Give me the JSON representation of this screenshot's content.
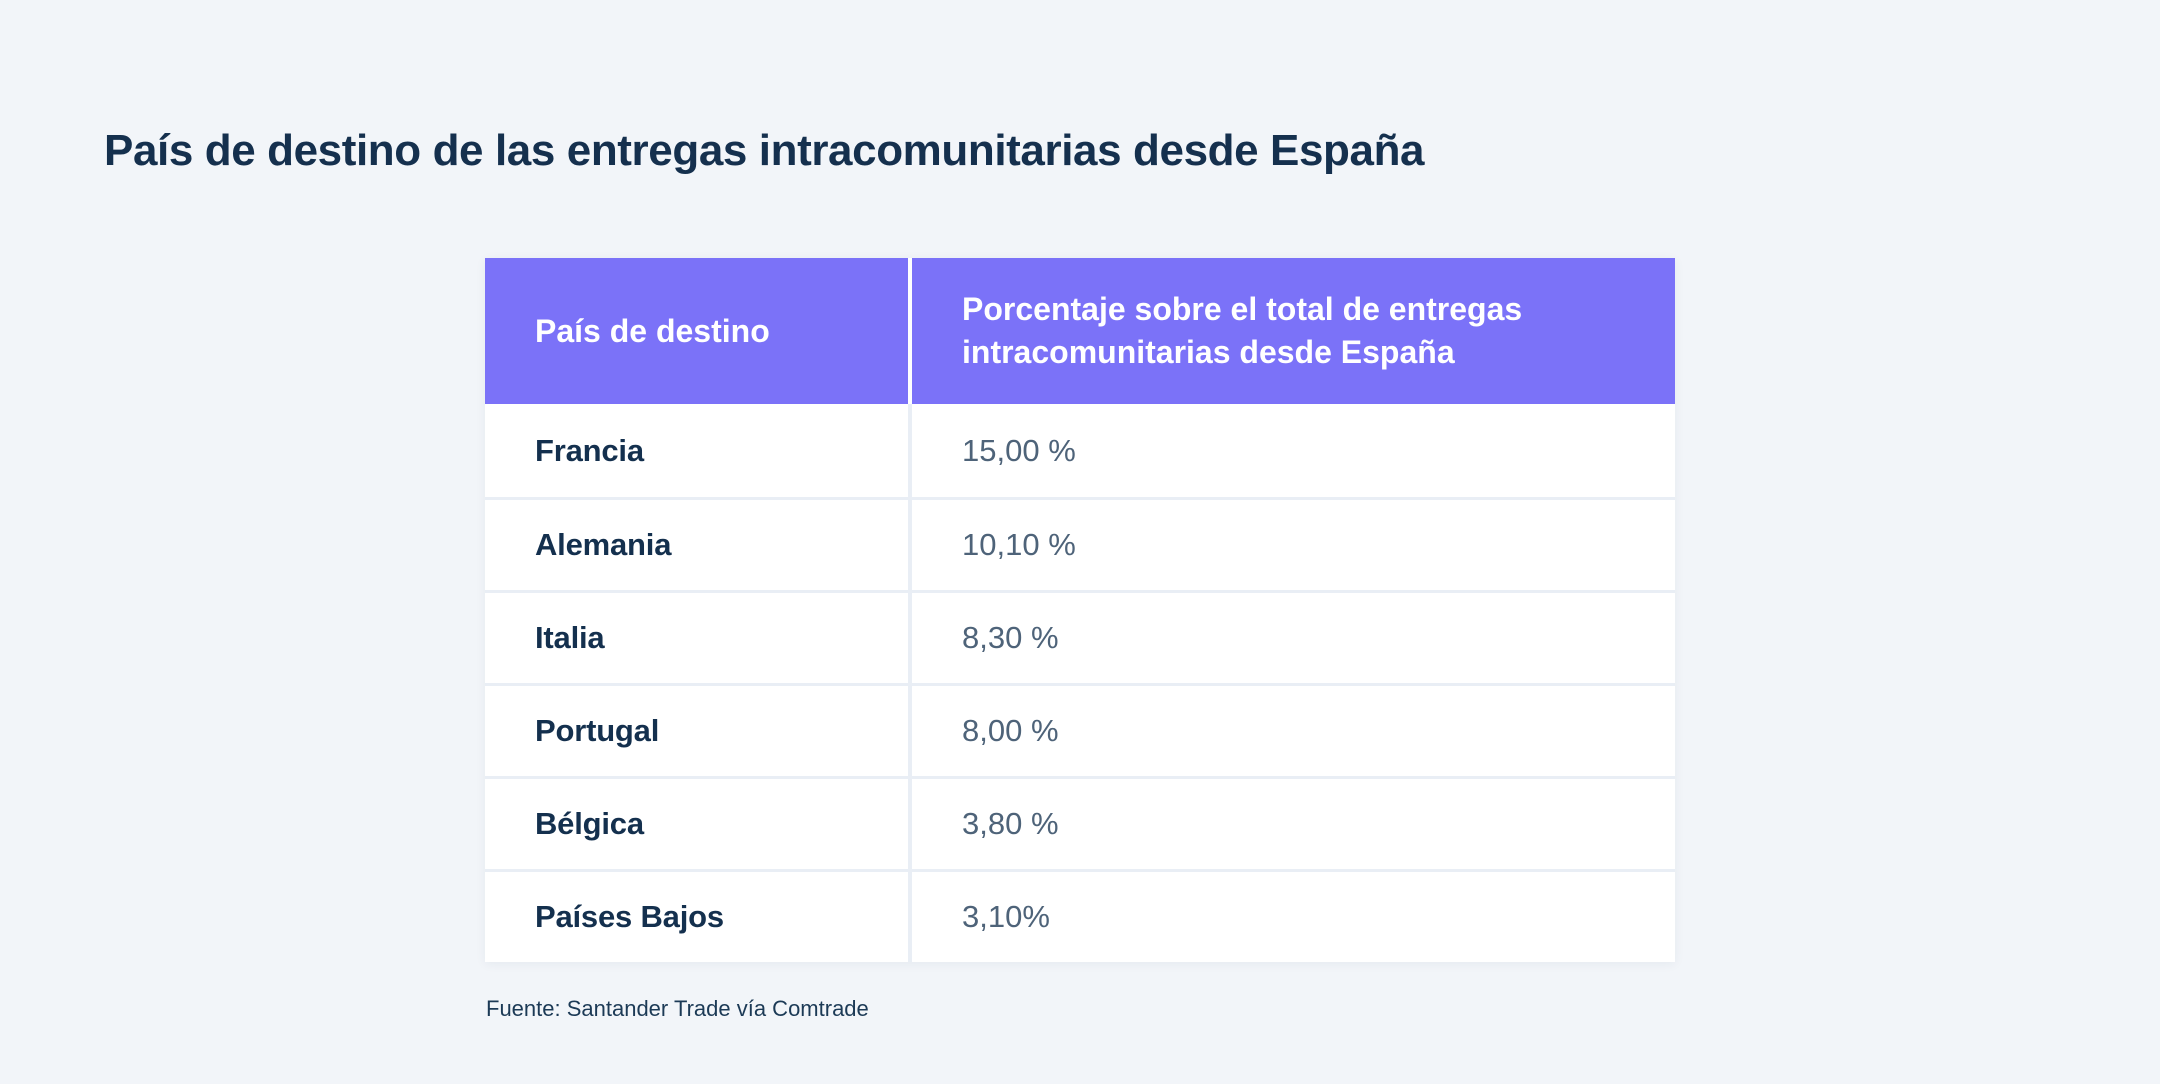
{
  "page": {
    "title": "País de destino de las entregas intracomunitarias desde España"
  },
  "table": {
    "header": {
      "country": "País de destino",
      "percentage": "Porcentaje sobre el total de entregas intracomunitarias desde España"
    },
    "rows": [
      {
        "country": "Francia",
        "value": "15,00 %"
      },
      {
        "country": "Alemania",
        "value": "10,10 %"
      },
      {
        "country": "Italia",
        "value": "8,30 %"
      },
      {
        "country": "Portugal",
        "value": "8,00 %"
      },
      {
        "country": "Bélgica",
        "value": "3,80 %"
      },
      {
        "country": "Países Bajos",
        "value": "3,10%"
      }
    ]
  },
  "footer": {
    "source": "Fuente: Santander Trade vía Comtrade"
  },
  "colors": {
    "page_bg": "#f2f5f9",
    "header_bg": "#7b72f8",
    "header_text": "#ffffff",
    "row_bg": "#ffffff",
    "divider": "#e9eef5",
    "title_text": "#15304e",
    "country_text": "#14304e",
    "value_text": "#4e6379",
    "source_text": "#1c3a56"
  },
  "chart_data": {
    "type": "table",
    "title": "País de destino de las entregas intracomunitarias desde España",
    "columns": [
      "País de destino",
      "Porcentaje sobre el total de entregas intracomunitarias desde España"
    ],
    "rows": [
      [
        "Francia",
        "15,00 %"
      ],
      [
        "Alemania",
        "10,10 %"
      ],
      [
        "Italia",
        "8,30 %"
      ],
      [
        "Portugal",
        "8,00 %"
      ],
      [
        "Bélgica",
        "3,80 %"
      ],
      [
        "Países Bajos",
        "3,10%"
      ]
    ],
    "values_numeric": [
      15.0,
      10.1,
      8.3,
      8.0,
      3.8,
      3.1
    ],
    "value_unit": "%",
    "source": "Fuente: Santander Trade vía Comtrade"
  }
}
